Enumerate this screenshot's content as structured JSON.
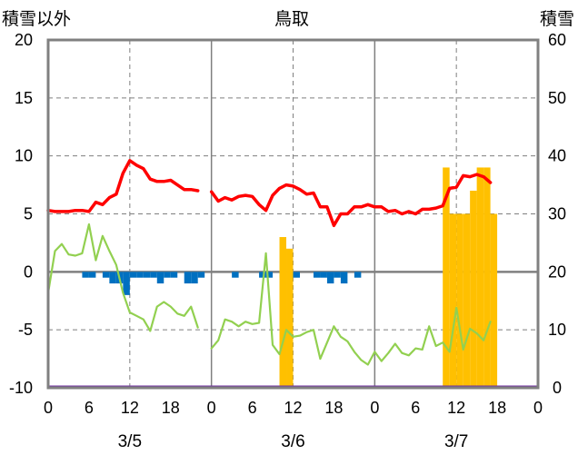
{
  "chart_data": {
    "type": "bar+line",
    "title": "鳥取",
    "left_axis_label": "積雪以外",
    "right_axis_label": "積雪",
    "left_ylim": [
      -10,
      20
    ],
    "left_ticks": [
      "20",
      "15",
      "10",
      "5",
      "0",
      "-5",
      "-10"
    ],
    "right_ylim": [
      0,
      60
    ],
    "right_ticks": [
      "60",
      "50",
      "40",
      "30",
      "20",
      "10",
      "0"
    ],
    "x_tick_labels": [
      "0",
      "6",
      "12",
      "18",
      "0",
      "6",
      "12",
      "18",
      "0",
      "6",
      "12",
      "18",
      "0"
    ],
    "day_labels": [
      "3/5",
      "3/6",
      "3/7"
    ],
    "grid": "dashed, every 5 units (left) and 12 hours",
    "colors": {
      "frame": "#808080",
      "grid": "#7f7f7f",
      "temp_line": "#ff0000",
      "dewpoint_line": "#92d050",
      "precip_bar": "#0070c0",
      "snow_bar": "#ffc000",
      "baseline": "#7030a0"
    },
    "series": [
      {
        "kind": "line",
        "color": "#ff0000",
        "axis": "left",
        "segments": [
          [
            [
              0,
              5.3
            ],
            [
              1,
              5.2
            ],
            [
              2,
              5.2
            ],
            [
              3,
              5.2
            ],
            [
              4,
              5.3
            ],
            [
              5,
              5.3
            ],
            [
              6,
              5.2
            ],
            [
              7,
              6.0
            ],
            [
              8,
              5.8
            ],
            [
              9,
              6.4
            ],
            [
              10,
              6.7
            ],
            [
              11,
              8.5
            ],
            [
              12,
              9.6
            ],
            [
              13,
              9.2
            ],
            [
              14,
              8.9
            ],
            [
              15,
              8.0
            ],
            [
              16,
              7.8
            ],
            [
              17,
              7.8
            ],
            [
              18,
              7.9
            ],
            [
              19,
              7.5
            ],
            [
              20,
              7.1
            ],
            [
              21,
              7.1
            ],
            [
              22,
              7.0
            ]
          ],
          [
            [
              24,
              6.9
            ],
            [
              25,
              6.1
            ],
            [
              26,
              6.4
            ],
            [
              27,
              6.2
            ],
            [
              28,
              6.5
            ],
            [
              29,
              6.6
            ],
            [
              30,
              6.5
            ],
            [
              31,
              5.8
            ],
            [
              32,
              5.3
            ],
            [
              33,
              6.6
            ],
            [
              34,
              7.2
            ],
            [
              35,
              7.5
            ],
            [
              36,
              7.4
            ],
            [
              37,
              7.1
            ],
            [
              38,
              6.7
            ],
            [
              39,
              6.8
            ],
            [
              40,
              5.6
            ],
            [
              41,
              5.6
            ],
            [
              42,
              4.0
            ],
            [
              43,
              5.0
            ],
            [
              44,
              5.0
            ],
            [
              45,
              5.6
            ],
            [
              46,
              5.6
            ],
            [
              47,
              5.8
            ],
            [
              48,
              5.6
            ],
            [
              49,
              5.6
            ],
            [
              50,
              5.2
            ],
            [
              51,
              5.3
            ],
            [
              52,
              5.0
            ],
            [
              53,
              5.2
            ],
            [
              54,
              5.0
            ],
            [
              55,
              5.4
            ],
            [
              56,
              5.4
            ],
            [
              57,
              5.5
            ],
            [
              58,
              5.7
            ],
            [
              59,
              7.2
            ],
            [
              60,
              7.3
            ],
            [
              61,
              8.3
            ],
            [
              62,
              8.2
            ],
            [
              63,
              8.4
            ],
            [
              64,
              8.2
            ],
            [
              65,
              7.7
            ]
          ]
        ]
      },
      {
        "kind": "line",
        "color": "#92d050",
        "axis": "left",
        "segments": [
          [
            [
              0,
              -1.8
            ],
            [
              1,
              1.8
            ],
            [
              2,
              2.4
            ],
            [
              3,
              1.5
            ],
            [
              4,
              1.4
            ],
            [
              5,
              1.6
            ],
            [
              6,
              4.1
            ],
            [
              7,
              1.0
            ],
            [
              8,
              3.1
            ],
            [
              9,
              1.8
            ],
            [
              10,
              0.6
            ],
            [
              11,
              -1.8
            ],
            [
              12,
              -3.5
            ],
            [
              13,
              -3.8
            ],
            [
              14,
              -4.1
            ],
            [
              15,
              -5.1
            ],
            [
              16,
              -3.0
            ],
            [
              17,
              -2.6
            ],
            [
              18,
              -3.0
            ],
            [
              19,
              -3.6
            ],
            [
              20,
              -3.8
            ],
            [
              21,
              -3.0
            ],
            [
              22,
              -4.8
            ]
          ],
          [
            [
              24,
              -6.6
            ],
            [
              25,
              -5.9
            ],
            [
              26,
              -4.1
            ],
            [
              27,
              -4.3
            ],
            [
              28,
              -4.7
            ],
            [
              29,
              -4.3
            ],
            [
              30,
              -4.5
            ],
            [
              31,
              -4.4
            ],
            [
              32,
              1.6
            ],
            [
              33,
              -6.3
            ],
            [
              34,
              -7.1
            ],
            [
              35,
              -5.0
            ],
            [
              36,
              -5.6
            ],
            [
              37,
              -5.5
            ],
            [
              38,
              -5.2
            ],
            [
              39,
              -5.0
            ],
            [
              40,
              -7.5
            ],
            [
              41,
              -6.1
            ],
            [
              42,
              -4.7
            ],
            [
              43,
              -5.6
            ],
            [
              44,
              -6.0
            ],
            [
              45,
              -6.9
            ],
            [
              46,
              -7.6
            ],
            [
              47,
              -8.0
            ],
            [
              48,
              -6.9
            ],
            [
              49,
              -7.7
            ],
            [
              50,
              -7.0
            ],
            [
              51,
              -6.2
            ],
            [
              52,
              -7.0
            ],
            [
              53,
              -7.2
            ],
            [
              54,
              -6.6
            ],
            [
              55,
              -6.7
            ],
            [
              56,
              -4.7
            ],
            [
              57,
              -6.4
            ],
            [
              58,
              -6.1
            ],
            [
              59,
              -6.9
            ],
            [
              60,
              -3.1
            ],
            [
              61,
              -6.7
            ],
            [
              62,
              -4.9
            ],
            [
              63,
              -5.3
            ],
            [
              64,
              -5.9
            ],
            [
              65,
              -4.3
            ]
          ]
        ]
      },
      {
        "kind": "bar",
        "color": "#0070c0",
        "axis": "left",
        "bars": [
          [
            5,
            -0.5
          ],
          [
            6,
            -0.5
          ],
          [
            8,
            -0.5
          ],
          [
            9,
            -1.0
          ],
          [
            10,
            -1.0
          ],
          [
            11,
            -2.0
          ],
          [
            12,
            -0.5
          ],
          [
            13,
            -0.5
          ],
          [
            14,
            -0.5
          ],
          [
            15,
            -0.5
          ],
          [
            16,
            -1.0
          ],
          [
            17,
            -0.5
          ],
          [
            18,
            -0.5
          ],
          [
            20,
            -1.0
          ],
          [
            21,
            -1.0
          ],
          [
            22,
            -0.5
          ],
          [
            27,
            -0.5
          ],
          [
            31,
            -0.5
          ],
          [
            32,
            -0.5
          ],
          [
            34,
            -0.5
          ],
          [
            36,
            -0.5
          ],
          [
            39,
            -0.5
          ],
          [
            40,
            -0.5
          ],
          [
            41,
            -1.0
          ],
          [
            42,
            -0.5
          ],
          [
            43,
            -1.0
          ],
          [
            45,
            -0.5
          ]
        ]
      },
      {
        "kind": "bar",
        "color": "#ffc000",
        "axis": "right",
        "bars": [
          [
            34,
            26
          ],
          [
            35,
            24
          ],
          [
            58,
            38
          ],
          [
            59,
            30
          ],
          [
            60,
            30
          ],
          [
            61,
            30
          ],
          [
            62,
            34
          ],
          [
            63,
            38
          ],
          [
            64,
            38
          ],
          [
            65,
            30
          ]
        ]
      }
    ]
  }
}
